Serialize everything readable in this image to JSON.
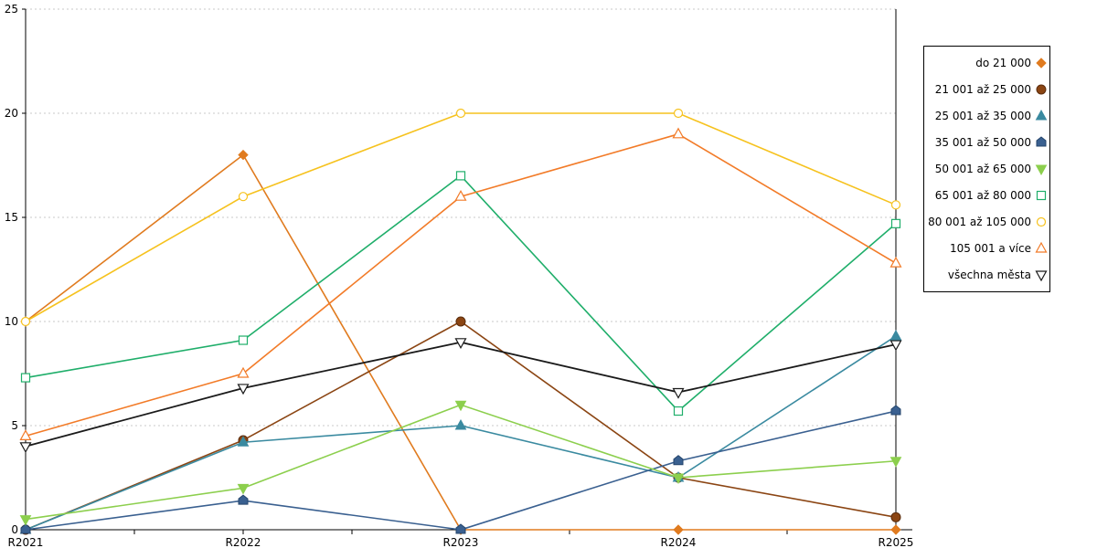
{
  "chart_data": {
    "type": "line",
    "categories": [
      "R2021",
      "R2022",
      "R2023",
      "R2024",
      "R2025"
    ],
    "ylim": [
      0,
      25
    ],
    "yticks": [
      0,
      5,
      10,
      15,
      20,
      25
    ],
    "grid": "horizontal dotted",
    "legend_position": "right",
    "series": [
      {
        "name": "do 21 000",
        "marker": "diamond",
        "color": "#e07b1f",
        "values": [
          10,
          18,
          0,
          0,
          0
        ]
      },
      {
        "name": "21 001 až 25 000",
        "marker": "circle-filled",
        "color": "#8b4513",
        "values": [
          0,
          4.3,
          10,
          2.5,
          0.6
        ]
      },
      {
        "name": "25 001 až 35 000",
        "marker": "triangle-up-filled",
        "color": "#3a8aa0",
        "values": [
          0,
          4.2,
          5,
          2.5,
          9.3
        ]
      },
      {
        "name": "35 001 až 50 000",
        "marker": "house",
        "color": "#3a6090",
        "values": [
          0,
          1.4,
          0,
          3.3,
          5.7
        ]
      },
      {
        "name": "50 001 až 65 000",
        "marker": "triangle-down-filled",
        "color": "#8ccf4d",
        "values": [
          0.5,
          2,
          6,
          2.5,
          3.3
        ]
      },
      {
        "name": "65 001 až 80 000",
        "marker": "square-open",
        "color": "#1fae6a",
        "values": [
          7.3,
          9.1,
          17,
          5.7,
          14.7
        ]
      },
      {
        "name": "80 001 až 105 000",
        "marker": "circle-open",
        "color": "#f6c21e",
        "values": [
          10,
          16,
          20,
          20,
          15.6
        ]
      },
      {
        "name": "105 001 a více",
        "marker": "triangle-up-open",
        "color": "#f27b28",
        "values": [
          4.5,
          7.5,
          16,
          19,
          12.8
        ]
      },
      {
        "name": "všechna města",
        "marker": "triangle-down-open",
        "color": "#1a1a1a",
        "values": [
          4,
          6.8,
          9,
          6.6,
          8.9
        ]
      }
    ]
  }
}
